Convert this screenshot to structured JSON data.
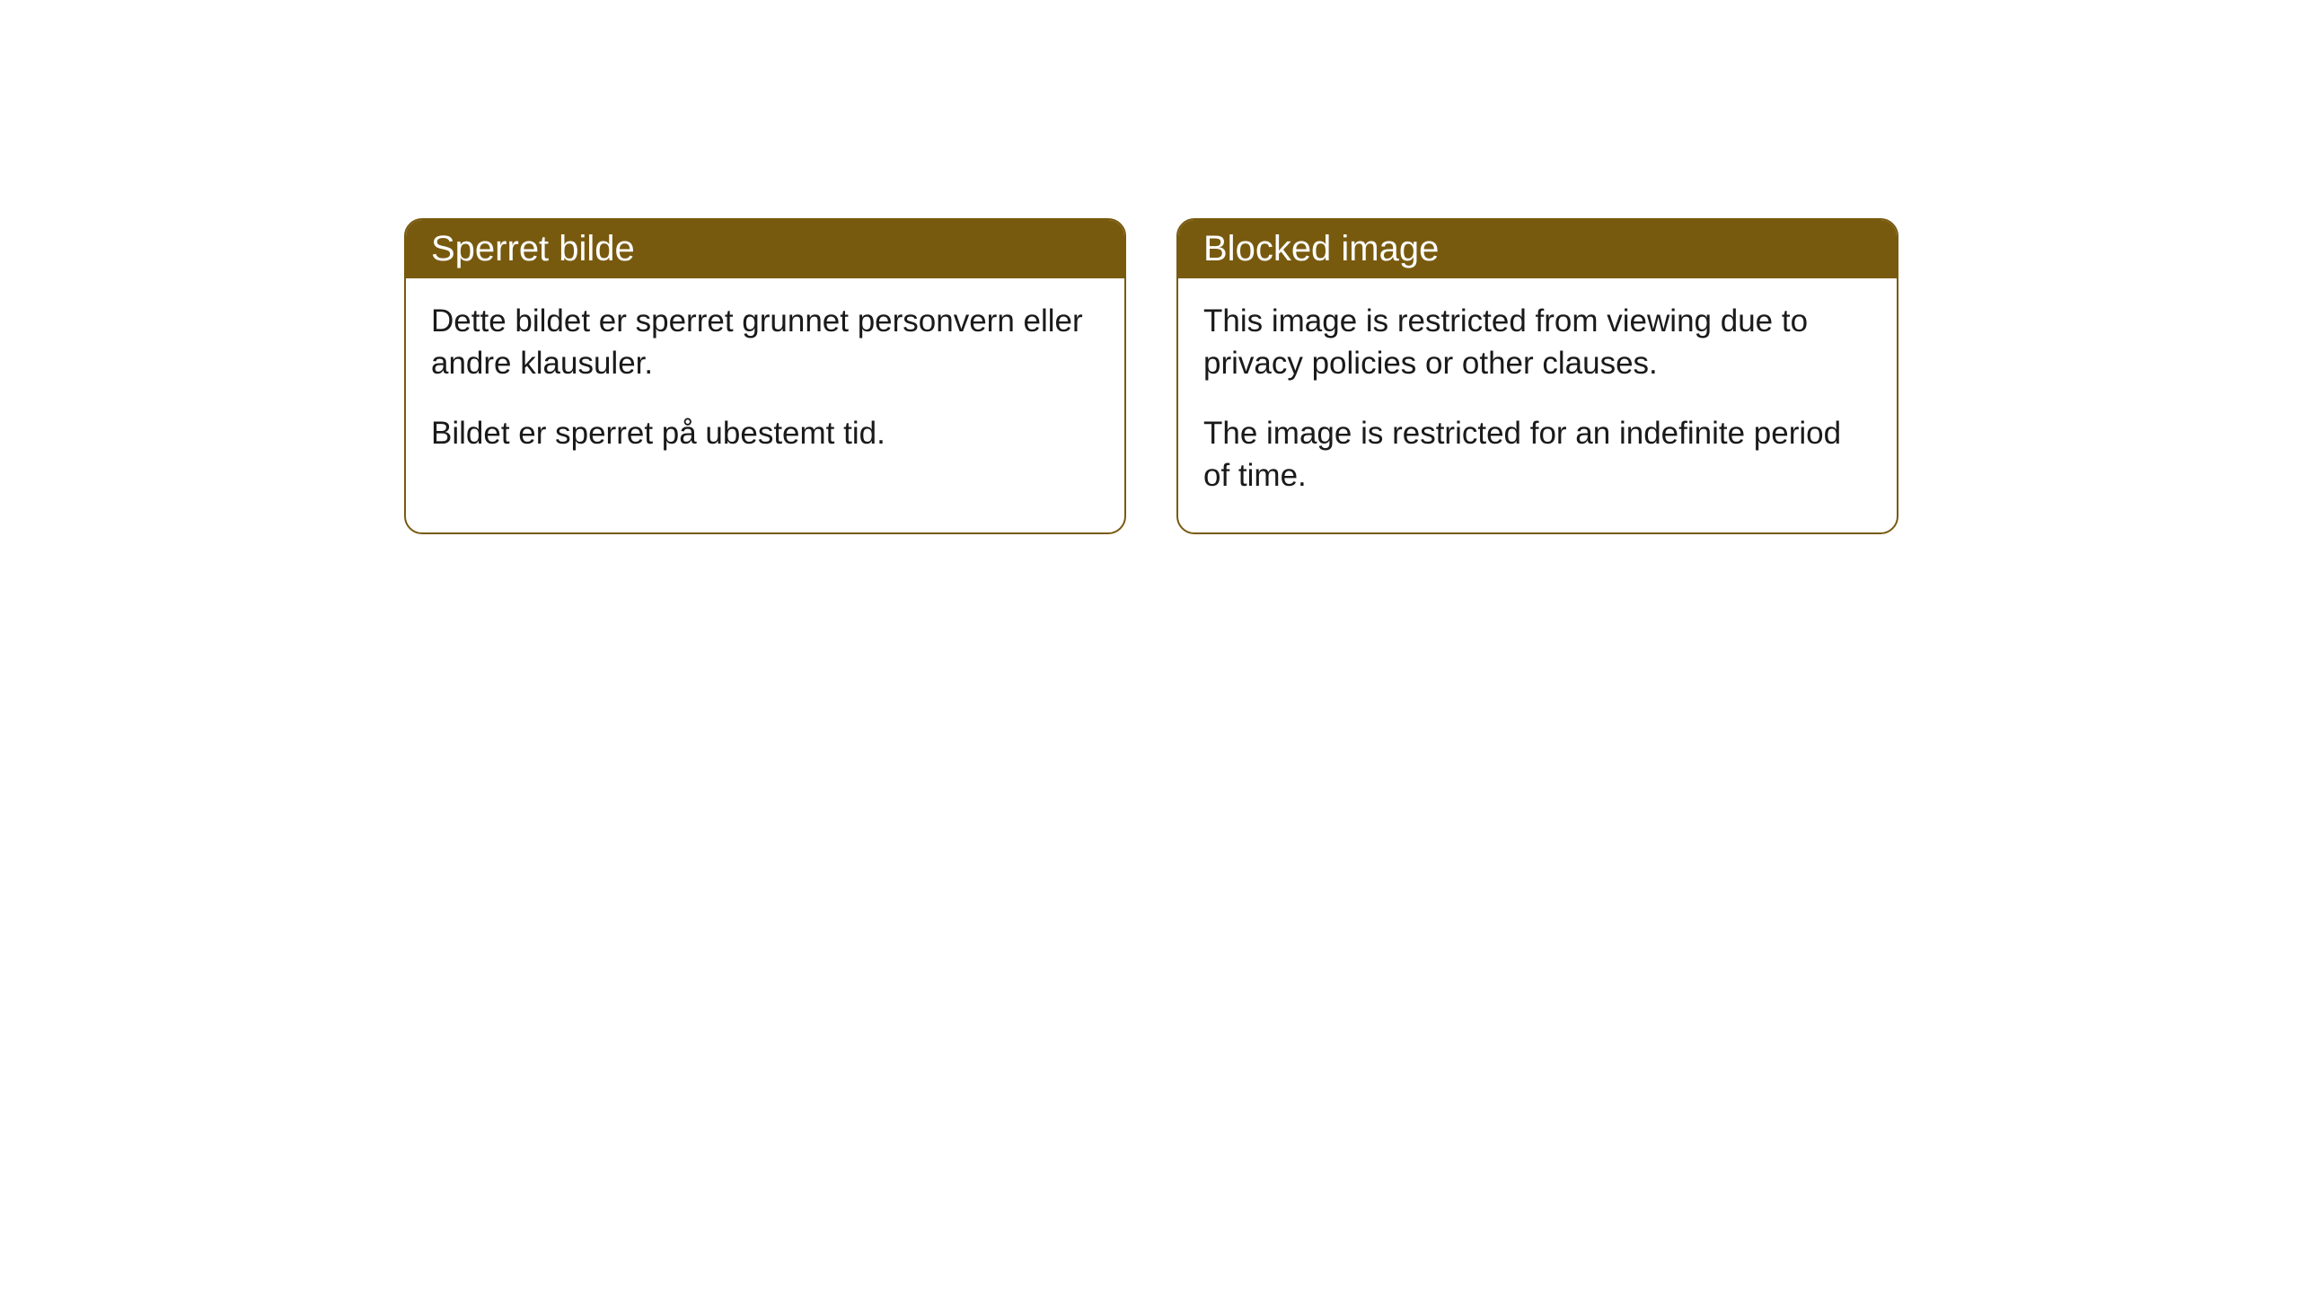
{
  "cards": [
    {
      "title": "Sperret bilde",
      "paragraph1": "Dette bildet er sperret grunnet personvern eller andre klausuler.",
      "paragraph2": "Bildet er sperret på ubestemt tid."
    },
    {
      "title": "Blocked image",
      "paragraph1": "This image is restricted from viewing due to privacy policies or other clauses.",
      "paragraph2": "The image is restricted for an indefinite period of time."
    }
  ],
  "styling": {
    "header_background_color": "#785a0f",
    "header_text_color": "#ffffff",
    "body_text_color": "#1a1a1a",
    "card_border_color": "#785a0f",
    "card_background_color": "#ffffff",
    "page_background_color": "#ffffff",
    "border_radius": 20,
    "header_fontsize": 40,
    "body_fontsize": 35
  }
}
